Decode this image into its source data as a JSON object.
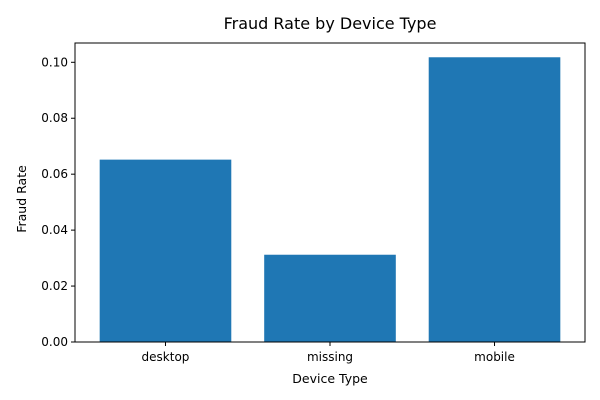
{
  "chart_data": {
    "type": "bar",
    "title": "Fraud Rate by Device Type",
    "xlabel": "Device Type",
    "ylabel": "Fraud Rate",
    "categories": [
      "desktop",
      "missing",
      "mobile"
    ],
    "values": [
      0.0652,
      0.0312,
      0.1018
    ],
    "ylim": [
      0,
      0.1069
    ],
    "yticks": [
      0.0,
      0.02,
      0.04,
      0.06,
      0.08,
      0.1
    ],
    "ytick_labels": [
      "0.00",
      "0.02",
      "0.04",
      "0.06",
      "0.08",
      "0.10"
    ],
    "bar_color": "#1f77b4",
    "grid": false,
    "legend": "none"
  }
}
